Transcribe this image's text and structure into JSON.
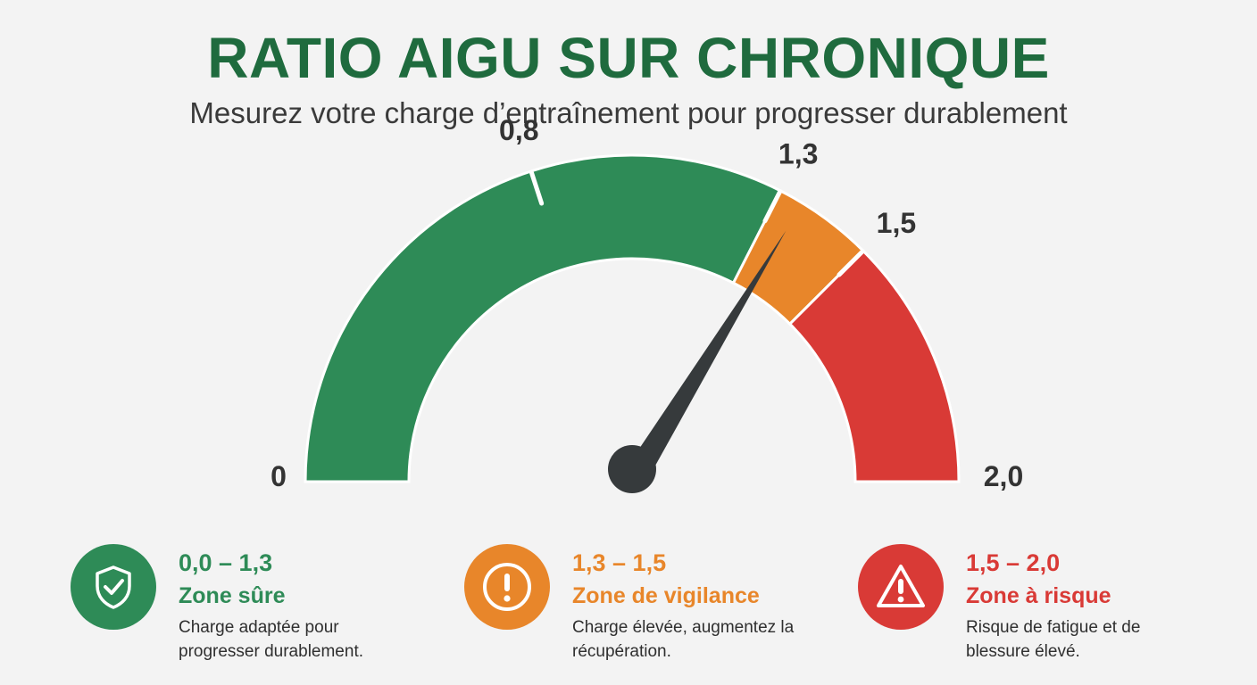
{
  "header": {
    "title": "RATIO AIGU SUR CHRONIQUE",
    "subtitle": "Mesurez votre charge d’entraînement pour progresser durablement"
  },
  "gauge": {
    "min": 0,
    "max": 2.0,
    "needle_value": 1.35,
    "segments": [
      {
        "from": 0,
        "to": 1.3,
        "color": "#2e8b57"
      },
      {
        "from": 1.3,
        "to": 1.5,
        "color": "#e8862a"
      },
      {
        "from": 1.5,
        "to": 2.0,
        "color": "#d93a36"
      }
    ],
    "labels": [
      {
        "value": 0,
        "text": "0"
      },
      {
        "value": 0.8,
        "text": "0,8"
      },
      {
        "value": 1.3,
        "text": "1,3"
      },
      {
        "value": 1.5,
        "text": "1,5"
      },
      {
        "value": 2.0,
        "text": "2,0"
      }
    ]
  },
  "zones": [
    {
      "range": "0,0 – 1,3",
      "name": "Zone sûre",
      "description": "Charge adaptée pour progresser durablement.",
      "color": "#2e8b57",
      "icon": "shield-check-icon"
    },
    {
      "range": "1,3 – 1,5",
      "name": "Zone de vigilance",
      "description": "Charge élevée, augmentez la récupération.",
      "color": "#e8862a",
      "icon": "exclamation-circle-icon"
    },
    {
      "range": "1,5 – 2,0",
      "name": "Zone à risque",
      "description": "Risque de fatigue et de blessure élevé.",
      "color": "#d93a36",
      "icon": "warning-triangle-icon"
    }
  ]
}
